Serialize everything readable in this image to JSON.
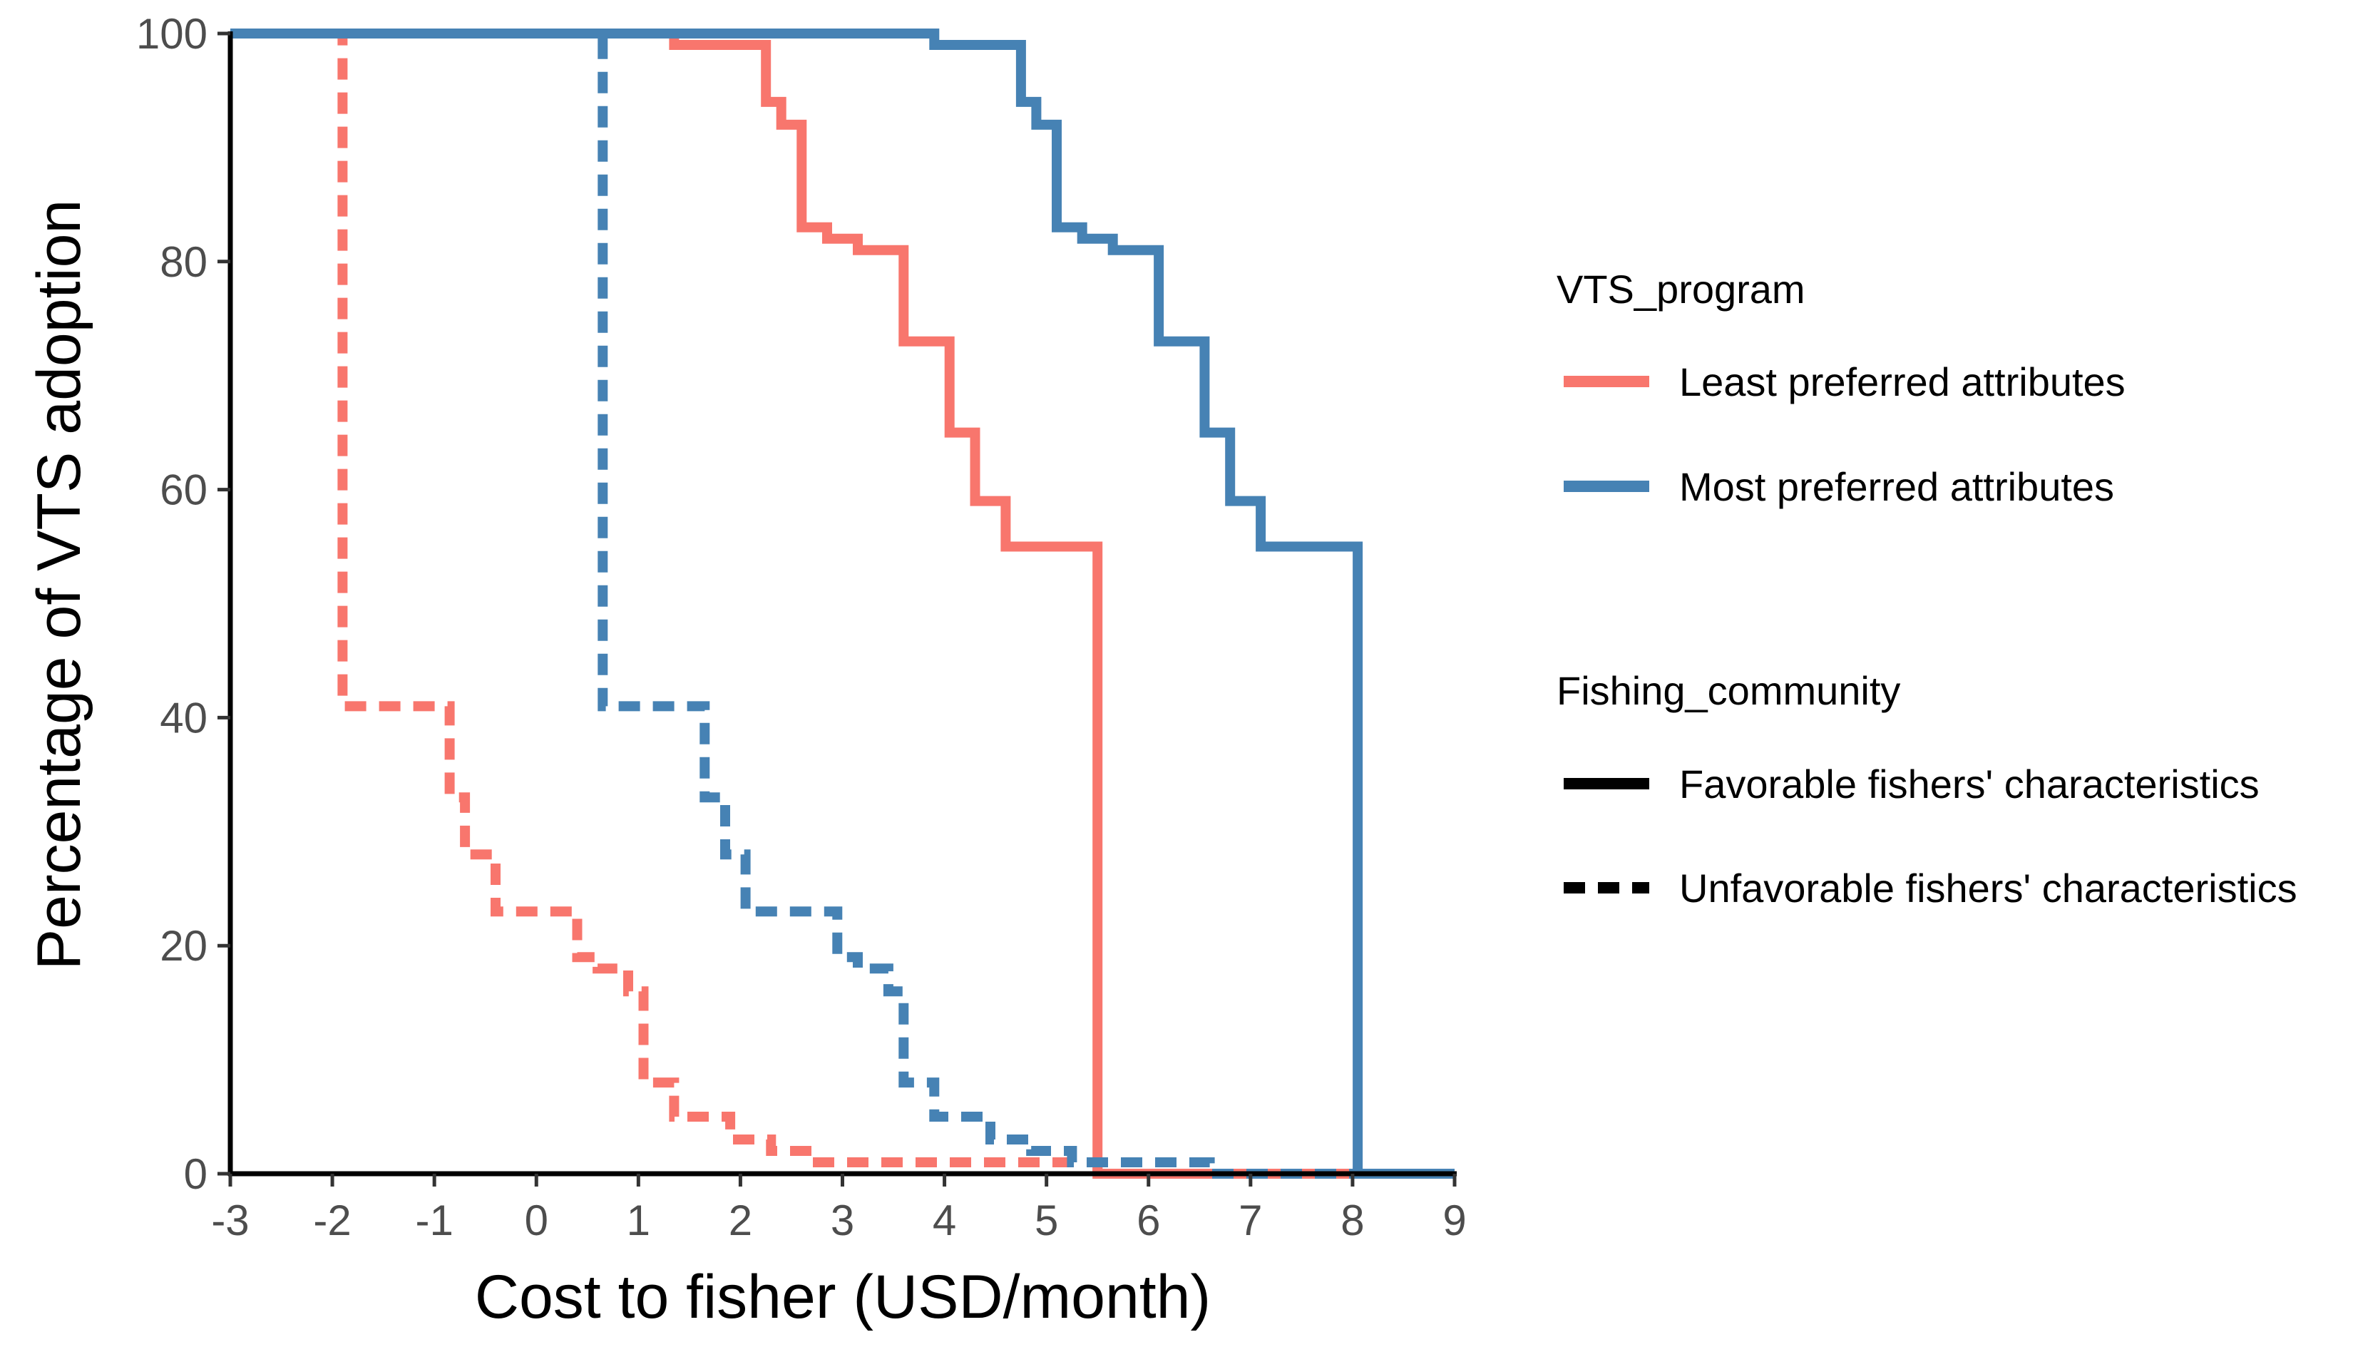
{
  "chart_data": {
    "type": "line",
    "step": true,
    "xlabel": "Cost to fisher (USD/month)",
    "ylabel": "Percentage of VTS adoption",
    "xlim": [
      -3,
      9
    ],
    "ylim": [
      0,
      100
    ],
    "x_ticks": [
      -3,
      -2,
      -1,
      0,
      1,
      2,
      3,
      4,
      5,
      6,
      7,
      8,
      9
    ],
    "x_tick_labels": [
      "-3",
      "-2",
      "-1",
      "0",
      "1",
      "2",
      "3",
      "4",
      "5",
      "6",
      "7",
      "8",
      "9"
    ],
    "y_ticks": [
      0,
      20,
      40,
      60,
      80,
      100
    ],
    "y_tick_labels": [
      "0",
      "20",
      "40",
      "60",
      "80",
      "100"
    ],
    "grid": false,
    "legend_position": "right",
    "legends": [
      {
        "title": "VTS_program",
        "entries": [
          {
            "label": "Least preferred attributes",
            "color": "#F8766D",
            "dash": "solid"
          },
          {
            "label": "Most preferred attributes",
            "color": "#4682B4",
            "dash": "solid"
          }
        ]
      },
      {
        "title": "Fishing_community",
        "entries": [
          {
            "label": "Favorable fishers' characteristics",
            "color": "#000000",
            "dash": "solid"
          },
          {
            "label": "Unfavorable fishers' characteristics",
            "color": "#000000",
            "dash": "dashed"
          }
        ]
      }
    ],
    "series": [
      {
        "program": "Least preferred attributes",
        "community": "Favorable fishers' characteristics",
        "color": "#F8766D",
        "dash": "solid",
        "points": [
          [
            -3,
            100
          ],
          [
            1.35,
            100
          ],
          [
            1.35,
            99
          ],
          [
            2.25,
            99
          ],
          [
            2.25,
            94
          ],
          [
            2.4,
            94
          ],
          [
            2.4,
            92
          ],
          [
            2.6,
            92
          ],
          [
            2.6,
            83
          ],
          [
            2.85,
            83
          ],
          [
            2.85,
            82
          ],
          [
            3.15,
            82
          ],
          [
            3.15,
            81
          ],
          [
            3.6,
            81
          ],
          [
            3.6,
            73
          ],
          [
            4.05,
            73
          ],
          [
            4.05,
            65
          ],
          [
            4.3,
            65
          ],
          [
            4.3,
            59
          ],
          [
            4.6,
            59
          ],
          [
            4.6,
            55
          ],
          [
            5.5,
            55
          ],
          [
            5.5,
            0
          ],
          [
            9,
            0
          ]
        ]
      },
      {
        "program": "Most preferred attributes",
        "community": "Favorable fishers' characteristics",
        "color": "#4682B4",
        "dash": "solid",
        "points": [
          [
            -3,
            100
          ],
          [
            3.9,
            100
          ],
          [
            3.9,
            99
          ],
          [
            4.75,
            99
          ],
          [
            4.75,
            94
          ],
          [
            4.9,
            94
          ],
          [
            4.9,
            92
          ],
          [
            5.1,
            92
          ],
          [
            5.1,
            83
          ],
          [
            5.35,
            83
          ],
          [
            5.35,
            82
          ],
          [
            5.65,
            82
          ],
          [
            5.65,
            81
          ],
          [
            6.1,
            81
          ],
          [
            6.1,
            73
          ],
          [
            6.55,
            73
          ],
          [
            6.55,
            65
          ],
          [
            6.8,
            65
          ],
          [
            6.8,
            59
          ],
          [
            7.1,
            59
          ],
          [
            7.1,
            55
          ],
          [
            8.05,
            55
          ],
          [
            8.05,
            0
          ],
          [
            9,
            0
          ]
        ]
      },
      {
        "program": "Least preferred attributes",
        "community": "Unfavorable fishers' characteristics",
        "color": "#F8766D",
        "dash": "dashed",
        "points": [
          [
            -3,
            100
          ],
          [
            -1.9,
            100
          ],
          [
            -1.9,
            41
          ],
          [
            -0.85,
            41
          ],
          [
            -0.85,
            33
          ],
          [
            -0.7,
            33
          ],
          [
            -0.7,
            28
          ],
          [
            -0.4,
            28
          ],
          [
            -0.4,
            23
          ],
          [
            0.4,
            23
          ],
          [
            0.4,
            19
          ],
          [
            0.6,
            19
          ],
          [
            0.6,
            18
          ],
          [
            0.9,
            18
          ],
          [
            0.9,
            16
          ],
          [
            1.05,
            16
          ],
          [
            1.05,
            8
          ],
          [
            1.35,
            8
          ],
          [
            1.35,
            5
          ],
          [
            1.9,
            5
          ],
          [
            1.9,
            3
          ],
          [
            2.3,
            3
          ],
          [
            2.3,
            2
          ],
          [
            2.7,
            2
          ],
          [
            2.7,
            1
          ],
          [
            5.5,
            1
          ],
          [
            5.5,
            0
          ],
          [
            9,
            0
          ]
        ]
      },
      {
        "program": "Most preferred attributes",
        "community": "Unfavorable fishers' characteristics",
        "color": "#4682B4",
        "dash": "dashed",
        "points": [
          [
            -3,
            100
          ],
          [
            0.65,
            100
          ],
          [
            0.65,
            41
          ],
          [
            1.65,
            41
          ],
          [
            1.65,
            33
          ],
          [
            1.85,
            33
          ],
          [
            1.85,
            28
          ],
          [
            2.05,
            28
          ],
          [
            2.05,
            23
          ],
          [
            2.95,
            23
          ],
          [
            2.95,
            19
          ],
          [
            3.15,
            19
          ],
          [
            3.15,
            18
          ],
          [
            3.45,
            18
          ],
          [
            3.45,
            16
          ],
          [
            3.6,
            16
          ],
          [
            3.6,
            8
          ],
          [
            3.9,
            8
          ],
          [
            3.9,
            5
          ],
          [
            4.45,
            5
          ],
          [
            4.45,
            3
          ],
          [
            4.85,
            3
          ],
          [
            4.85,
            2
          ],
          [
            5.25,
            2
          ],
          [
            5.25,
            1
          ],
          [
            6.6,
            1
          ],
          [
            6.6,
            0
          ],
          [
            9,
            0
          ]
        ]
      }
    ]
  }
}
